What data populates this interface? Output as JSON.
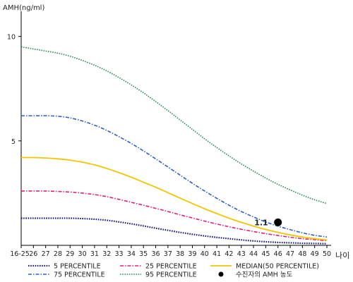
{
  "chart_data": {
    "type": "line",
    "ylabel": "AMH(ng/ml)",
    "xlabel": "나이",
    "ylim": [
      0,
      11
    ],
    "yticks": [
      5,
      10
    ],
    "grid": false,
    "categories": [
      "16-25",
      "26",
      "27",
      "28",
      "29",
      "30",
      "31",
      "32",
      "33",
      "34",
      "35",
      "36",
      "37",
      "38",
      "39",
      "40",
      "41",
      "42",
      "43",
      "44",
      "45",
      "46",
      "47",
      "48",
      "49",
      "50"
    ],
    "series": [
      {
        "name": "5 PERCENTILE",
        "color": "#1a1a80",
        "values": [
          1.3,
          1.3,
          1.3,
          1.3,
          1.3,
          1.28,
          1.25,
          1.2,
          1.12,
          1.03,
          0.93,
          0.82,
          0.72,
          0.62,
          0.53,
          0.45,
          0.38,
          0.32,
          0.26,
          0.21,
          0.17,
          0.14,
          0.12,
          0.1,
          0.09,
          0.08
        ]
      },
      {
        "name": "25 PERCENTILE",
        "color": "#e0207a",
        "values": [
          2.6,
          2.6,
          2.6,
          2.58,
          2.55,
          2.5,
          2.43,
          2.33,
          2.2,
          2.06,
          1.92,
          1.77,
          1.62,
          1.46,
          1.31,
          1.16,
          1.02,
          0.89,
          0.77,
          0.66,
          0.56,
          0.47,
          0.39,
          0.32,
          0.27,
          0.22
        ]
      },
      {
        "name": "MEDIAN(50 PERCENTILE)",
        "color": "#f2c500",
        "values": [
          4.2,
          4.2,
          4.18,
          4.14,
          4.08,
          3.98,
          3.85,
          3.68,
          3.48,
          3.26,
          3.02,
          2.78,
          2.52,
          2.26,
          2.0,
          1.75,
          1.52,
          1.3,
          1.1,
          0.92,
          0.76,
          0.62,
          0.5,
          0.4,
          0.32,
          0.26
        ]
      },
      {
        "name": "75 PERCENTILE",
        "color": "#2f5fc4",
        "values": [
          6.2,
          6.2,
          6.2,
          6.18,
          6.1,
          5.95,
          5.75,
          5.5,
          5.2,
          4.88,
          4.52,
          4.14,
          3.75,
          3.36,
          2.97,
          2.6,
          2.25,
          1.92,
          1.62,
          1.36,
          1.12,
          0.92,
          0.75,
          0.6,
          0.48,
          0.4
        ]
      },
      {
        "name": "95 PERCENTILE",
        "color": "#2e8b57",
        "values": [
          9.5,
          9.4,
          9.3,
          9.2,
          9.05,
          8.85,
          8.62,
          8.35,
          8.03,
          7.68,
          7.3,
          6.88,
          6.45,
          6.0,
          5.55,
          5.1,
          4.68,
          4.28,
          3.9,
          3.55,
          3.22,
          2.92,
          2.65,
          2.4,
          2.18,
          2.0
        ]
      }
    ],
    "points": [
      {
        "name": "수진자의 AMH 농도",
        "x": "46",
        "y": 1.1,
        "label": "1.1",
        "color": "#000000"
      }
    ],
    "legend": {
      "position": "bottom"
    }
  }
}
